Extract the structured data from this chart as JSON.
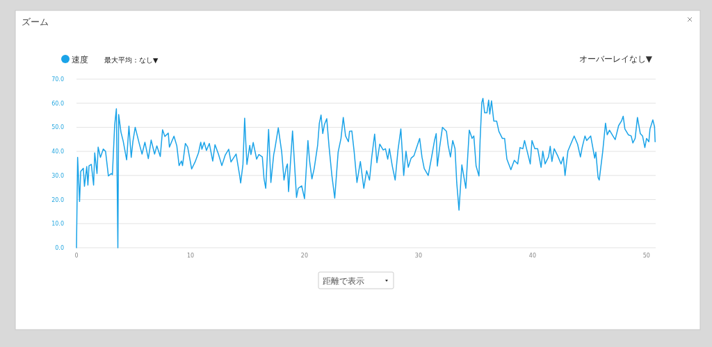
{
  "chart_data": {
    "type": "line",
    "title": "ズーム",
    "legend": "top left",
    "grid": "y",
    "marker": "none",
    "line_style": "solid",
    "xlim": [
      0,
      50.8
    ],
    "xticks": [
      0,
      10,
      20,
      30,
      40,
      50
    ],
    "ylim": [
      0,
      70
    ],
    "yticks": [
      {
        "value": 0,
        "label": "0.0"
      },
      {
        "value": 10,
        "label": "10.0"
      },
      {
        "value": 20,
        "label": "20.0"
      },
      {
        "value": 30,
        "label": "30.0"
      },
      {
        "value": 40,
        "label": "40.0"
      },
      {
        "value": 50,
        "label": "50.0"
      },
      {
        "value": 60,
        "label": "60.0"
      },
      {
        "value": 70,
        "label": "70.0"
      }
    ],
    "annotations": [
      "最大平均：なし▼",
      "オーバーレイなし▼",
      "距離で表示"
    ],
    "series": [
      {
        "name": "速度",
        "color": "#1aa3e8",
        "x": [
          0,
          0.1,
          0.27,
          0.37,
          0.6,
          0.7,
          0.9,
          1.0,
          1.1,
          1.3,
          1.5,
          1.6,
          1.8,
          1.9,
          2.1,
          2.35,
          2.55,
          2.8,
          3.05,
          3.15,
          3.35,
          3.5,
          3.63,
          3.7,
          3.9,
          4.1,
          4.4,
          4.6,
          4.8,
          4.95,
          5.15,
          5.5,
          5.75,
          6.0,
          6.3,
          6.55,
          6.85,
          7.05,
          7.35,
          7.55,
          7.75,
          8.05,
          8.15,
          8.55,
          8.8,
          9.0,
          9.2,
          9.3,
          9.55,
          9.75,
          10.1,
          10.4,
          10.7,
          10.9,
          11.0,
          11.2,
          11.4,
          11.65,
          11.95,
          12.15,
          12.45,
          12.75,
          13.05,
          13.35,
          13.55,
          14.0,
          14.3,
          14.4,
          14.6,
          14.75,
          14.85,
          14.95,
          15.2,
          15.3,
          15.5,
          15.8,
          16.0,
          16.3,
          16.45,
          16.6,
          16.85,
          17.05,
          17.3,
          17.4,
          17.7,
          18.0,
          18.2,
          18.4,
          18.5,
          18.6,
          18.95,
          19.3,
          19.45,
          19.75,
          20.0,
          20.3,
          20.45,
          20.65,
          20.85,
          21.15,
          21.3,
          21.45,
          21.6,
          21.75,
          21.95,
          22.15,
          22.4,
          22.65,
          22.95,
          23.2,
          23.4,
          23.6,
          23.85,
          23.95,
          24.15,
          24.35,
          24.6,
          24.9,
          25.2,
          25.45,
          25.7,
          25.9,
          26.15,
          26.35,
          26.6,
          26.9,
          27.1,
          27.3,
          27.45,
          27.7,
          27.95,
          28.2,
          28.45,
          28.7,
          28.9,
          29.1,
          29.35,
          29.6,
          29.8,
          30.1,
          30.3,
          30.5,
          30.85,
          31.15,
          31.4,
          31.55,
          31.65,
          31.85,
          32.1,
          32.45,
          32.6,
          32.8,
          33.0,
          33.2,
          33.35,
          33.55,
          33.8,
          34.15,
          34.45,
          34.7,
          34.85,
          35.05,
          35.3,
          35.4,
          35.55,
          35.65,
          35.8,
          36.0,
          36.15,
          36.25,
          36.4,
          36.6,
          36.85,
          37.05,
          37.35,
          37.55,
          37.75,
          38.1,
          38.4,
          38.7,
          38.9,
          39.15,
          39.3,
          39.5,
          39.8,
          39.95,
          40.2,
          40.45,
          40.75,
          40.9,
          41.1,
          41.4,
          41.55,
          41.7,
          41.9,
          42.2,
          42.5,
          42.7,
          42.85,
          43.1,
          43.35,
          43.65,
          43.95,
          44.2,
          44.35,
          44.6,
          44.75,
          45.1,
          45.25,
          45.45,
          45.55,
          45.75,
          45.85,
          46.15,
          46.4,
          46.55,
          46.75,
          47.05,
          47.25,
          47.55,
          47.8,
          47.95,
          48.1,
          48.4,
          48.65,
          48.8,
          49.0,
          49.2,
          49.45,
          49.65,
          49.85,
          50.0,
          50.2,
          50.3,
          50.55,
          50.7,
          50.75
        ],
        "values": [
          0,
          37.5,
          19.2,
          31.7,
          33,
          25.5,
          33.7,
          26,
          34,
          34.6,
          26,
          39.4,
          30.8,
          41.8,
          37.5,
          41,
          40,
          29.8,
          30.8,
          30.3,
          51,
          57.7,
          0,
          55.3,
          48,
          44.2,
          36.5,
          50.5,
          37.5,
          44.2,
          50,
          43.3,
          38.9,
          43.8,
          37,
          44.7,
          38.9,
          42.3,
          37.9,
          49,
          46.2,
          47.6,
          41.8,
          46.3,
          42.3,
          34.1,
          36,
          34.1,
          43.3,
          41.8,
          32.7,
          35.6,
          39.4,
          43.8,
          40.9,
          43.8,
          40.4,
          43.3,
          36,
          42.8,
          38.9,
          34.1,
          38.5,
          40.9,
          35.6,
          38.9,
          30.3,
          26.9,
          34.6,
          53.8,
          43.8,
          34.6,
          42.5,
          38.7,
          43.7,
          36.8,
          38.7,
          37.7,
          28.6,
          24.7,
          49.1,
          27.1,
          38.7,
          41.1,
          49.8,
          39.7,
          28.1,
          33.4,
          34.8,
          23.3,
          48.5,
          20.9,
          24.7,
          25.7,
          20.4,
          44.5,
          35.8,
          28.6,
          32.9,
          42.5,
          51.7,
          55.1,
          47.4,
          51.2,
          53.6,
          42.1,
          30,
          20.6,
          39.7,
          45.4,
          54.1,
          46.4,
          44,
          48.3,
          48.5,
          40.1,
          27.1,
          35.8,
          24.7,
          32,
          28.1,
          37.7,
          47.2,
          35.3,
          43,
          40.6,
          41.1,
          36.8,
          41.1,
          33.9,
          28.1,
          40.6,
          49.3,
          30,
          40.1,
          33.4,
          37.2,
          38.2,
          41.1,
          45.4,
          37.7,
          32.9,
          30,
          37.7,
          44.5,
          47.4,
          33.9,
          41.6,
          50,
          48.3,
          42.5,
          37.7,
          44.5,
          41.1,
          27.1,
          15.6,
          34.4,
          24.7,
          48.8,
          45.4,
          46.4,
          33.9,
          29.8,
          44.5,
          60.3,
          62,
          56,
          56,
          61.3,
          55.5,
          61,
          52.6,
          52.6,
          48.3,
          45.4,
          45.4,
          36.8,
          32.4,
          36.3,
          34.8,
          41.6,
          41.1,
          44.5,
          40.6,
          34.8,
          44.5,
          41.1,
          41.1,
          33.4,
          40.1,
          34.8,
          37.7,
          42.1,
          35.8,
          41.1,
          38.2,
          34.8,
          37.7,
          30,
          40.1,
          43,
          46.4,
          43,
          37.7,
          41.6,
          46.4,
          44.5,
          46.4,
          42.5,
          37.2,
          39.7,
          29.1,
          28.1,
          39.7,
          51.7,
          46.9,
          48.8,
          46.4,
          44.9,
          50.7,
          52.6,
          54.6,
          49.3,
          46.9,
          46.4,
          43.5,
          45.4,
          54.1,
          47.4,
          46.4,
          41.6,
          45.4,
          44,
          49.3,
          53.1,
          50.2,
          44
        ]
      }
    ]
  }
}
